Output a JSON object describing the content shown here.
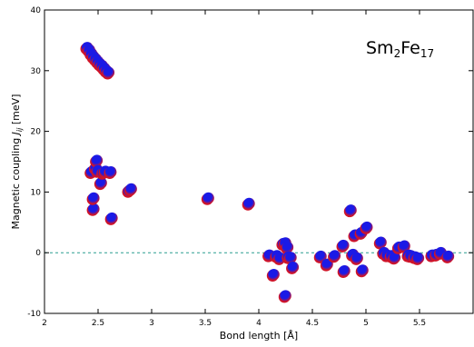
{
  "chart_data": {
    "type": "scatter",
    "annotation": {
      "base1": "Sm",
      "sub1": "2",
      "base2": "Fe",
      "sub2": "17"
    },
    "xlabel": "Bond length [Å]",
    "ylabel": {
      "prefix": "Magnetic coupling ",
      "j": "J",
      "sub": "ij",
      "suffix": " [meV]"
    },
    "xlim": [
      2,
      6
    ],
    "ylim": [
      -10,
      40
    ],
    "x_ticks": [
      2,
      2.5,
      3,
      3.5,
      4,
      4.5,
      5,
      5.5
    ],
    "x_tick_labels": [
      "2",
      "2.5",
      "3",
      "3.5",
      "4",
      "4.5",
      "5",
      "5.5"
    ],
    "y_ticks": [
      -10,
      0,
      10,
      20,
      30,
      40
    ],
    "y_tick_labels": [
      "-10",
      "0",
      "10",
      "20",
      "30",
      "40"
    ],
    "reference_line": {
      "y": 0,
      "style": "dashed",
      "color": "#2a9d8f"
    },
    "colors": {
      "primary": "#1a1ae6",
      "secondary": "#d01428"
    },
    "series": [
      {
        "x": [
          2.4,
          2.42,
          2.44,
          2.46,
          2.48,
          2.5,
          2.52,
          2.54,
          2.56,
          2.58,
          2.6
        ],
        "y": [
          33.8,
          33.4,
          32.8,
          32.3,
          31.9,
          31.5,
          31.1,
          30.8,
          30.4,
          30.0,
          29.7
        ]
      },
      {
        "x": [
          2.44,
          2.46,
          2.46,
          2.48,
          2.49,
          2.5,
          2.53,
          2.55,
          2.57,
          2.62,
          2.63,
          2.79,
          2.81,
          3.53,
          3.91
        ],
        "y": [
          13.3,
          7.2,
          9.0,
          14.0,
          15.2,
          13.5,
          11.5,
          13.2,
          13.4,
          13.3,
          5.7,
          10.2,
          10.5,
          9.0,
          8.1
        ]
      },
      {
        "x": [
          4.1,
          4.14,
          4.17,
          4.2,
          4.23,
          4.25,
          4.25,
          4.27,
          4.28,
          4.3,
          4.32,
          4.58,
          4.64,
          4.71,
          4.79,
          4.8,
          4.86,
          4.88,
          4.9,
          4.92,
          4.96,
          4.97,
          5.01,
          5.14,
          5.17,
          5.2,
          5.24,
          5.27,
          5.31,
          5.36,
          5.4,
          5.42,
          5.46,
          5.49,
          5.62,
          5.66,
          5.7,
          5.77
        ],
        "y": [
          -0.4,
          -3.6,
          -0.5,
          -0.9,
          1.5,
          -7.1,
          1.6,
          0.9,
          -0.7,
          -0.8,
          -2.4,
          -0.6,
          -1.9,
          -0.5,
          1.2,
          -3.0,
          7.0,
          -0.3,
          2.9,
          -0.9,
          3.3,
          -2.9,
          4.2,
          1.7,
          0.0,
          -0.4,
          -0.5,
          -0.8,
          0.9,
          1.1,
          -0.4,
          -0.5,
          -0.7,
          -0.9,
          -0.4,
          -0.3,
          0.0,
          -0.6
        ]
      }
    ]
  }
}
